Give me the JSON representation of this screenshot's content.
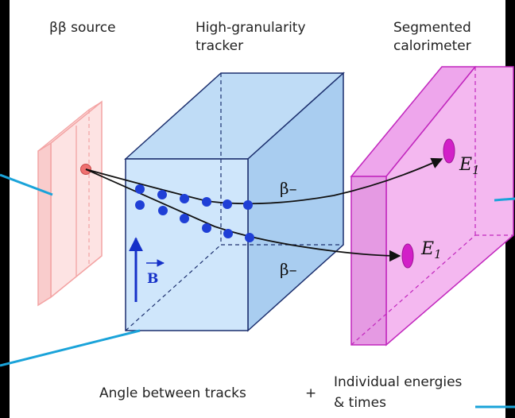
{
  "labels": {
    "source": "ββ source",
    "tracker_line1": "High-granularity",
    "tracker_line2": "tracker",
    "calorimeter_line1": "Segmented",
    "calorimeter_line2": "calorimeter",
    "beta_top": "β–",
    "beta_bottom": "β–",
    "energy_top": "E",
    "energy_top_sub": "1",
    "energy_bottom": "E",
    "energy_bottom_sub": "1",
    "field": "B",
    "angle": "Angle between tracks",
    "plus": "+",
    "energies_line1": "Individual energies",
    "energies_line2": "& times"
  },
  "colors": {
    "source_fill": "#fde3e3",
    "source_stroke": "#f3a3a3",
    "tracker_fill": "#cfe6fb",
    "tracker_stroke": "#1c2f6e",
    "calorimeter_fill": "#f4b8f0",
    "calorimeter_stroke": "#c126bd",
    "hit_dot": "#1f3fd6",
    "callout": "#1aa3d9",
    "field_arrow": "#1530c8"
  }
}
